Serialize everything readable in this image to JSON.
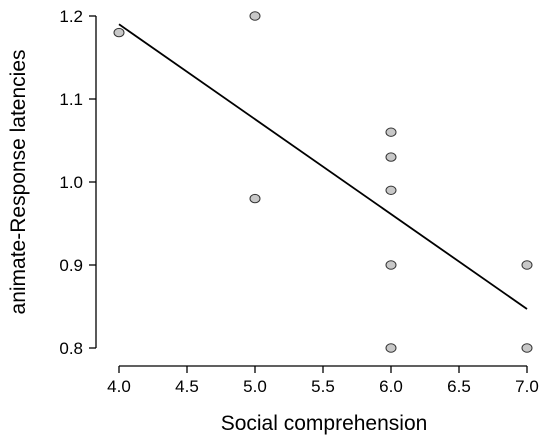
{
  "chart_data": {
    "type": "scatter",
    "title": "",
    "xlabel": "Social comprehension",
    "ylabel": "animate-Response latencies",
    "xlim": [
      4.0,
      7.0
    ],
    "ylim": [
      0.8,
      1.2
    ],
    "x_ticks": [
      "4.0",
      "4.5",
      "5.0",
      "5.5",
      "6.0",
      "6.5",
      "7.0"
    ],
    "y_ticks": [
      "0.8",
      "0.9",
      "1.0",
      "1.1",
      "1.2"
    ],
    "points": [
      {
        "x": 4.0,
        "y": 1.18
      },
      {
        "x": 5.0,
        "y": 1.2
      },
      {
        "x": 5.0,
        "y": 0.98
      },
      {
        "x": 6.0,
        "y": 1.06
      },
      {
        "x": 6.0,
        "y": 1.03
      },
      {
        "x": 6.0,
        "y": 0.99
      },
      {
        "x": 6.0,
        "y": 0.9
      },
      {
        "x": 6.0,
        "y": 0.8
      },
      {
        "x": 7.0,
        "y": 0.9
      },
      {
        "x": 7.0,
        "y": 0.8
      }
    ],
    "fit_line": {
      "x": [
        4.0,
        7.0
      ],
      "y": [
        1.19,
        0.847
      ]
    },
    "point_fill": "#c8c8c8",
    "point_stroke": "#333333",
    "line_color": "#000000",
    "grid": false,
    "legend": "none"
  }
}
